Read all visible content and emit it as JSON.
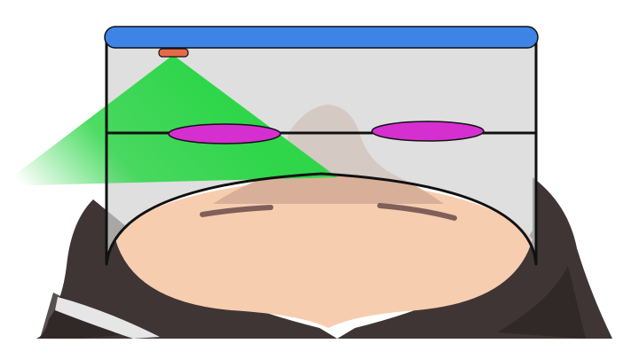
{
  "colors": {
    "background": "#ffffff",
    "headband": "#3e84e6",
    "emitter": "#e56a4a",
    "beam": "#2fd64a",
    "visor": "#d3d3d3",
    "lens": "#d52fd0",
    "skin": "#f7cdb0",
    "nose": "#d8b09a",
    "eyebrow": "#6b4b4b",
    "hair": "#3f3535",
    "hair_shadow": "#2e2626",
    "collar": "#e6e6e6",
    "outline": "#111111"
  },
  "icons": {
    "headband": "headband-icon",
    "emitter": "light-emitter-icon",
    "beam": "light-beam-icon",
    "lens_left": "left-lens-icon",
    "lens_right": "right-lens-icon",
    "head": "head-icon",
    "nose": "nose-icon"
  }
}
